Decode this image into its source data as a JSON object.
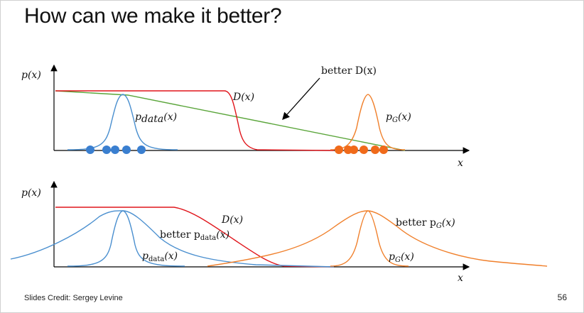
{
  "slide": {
    "title": "How can we make it better?",
    "credit": "Slides Credit: Sergey Levine",
    "page_number": "56"
  },
  "colors": {
    "data_dist": "#4a8fcf",
    "generator_dist": "#f07f2a",
    "discriminator": "#e0151b",
    "better_discriminator": "#5aa53a",
    "data_points": "#3a7fd0",
    "gen_points": "#f06a1a",
    "axis": "#000000"
  },
  "top_plot": {
    "y_label": "p(x)",
    "x_label": "x",
    "d_label": "D(x)",
    "better_d_label": "better D(x)",
    "p_data_label": "p",
    "p_data_sub": "data",
    "p_data_arg": "(x)",
    "p_g_label": "p",
    "p_g_sub": "G",
    "p_g_arg": "(x)"
  },
  "bottom_plot": {
    "y_label": "p(x)",
    "x_label": "x",
    "d_label": "D(x)",
    "better_p_data_prefix": "better p",
    "better_p_data_sub": "data",
    "better_p_data_arg": "(x)",
    "p_data_label": "p",
    "p_data_sub": "data",
    "p_data_arg": "(x)",
    "better_p_g_prefix": "better p",
    "better_p_g_sub": "G",
    "better_p_g_arg": "(x)",
    "p_g_label": "p",
    "p_g_sub": "G",
    "p_g_arg": "(x)"
  }
}
